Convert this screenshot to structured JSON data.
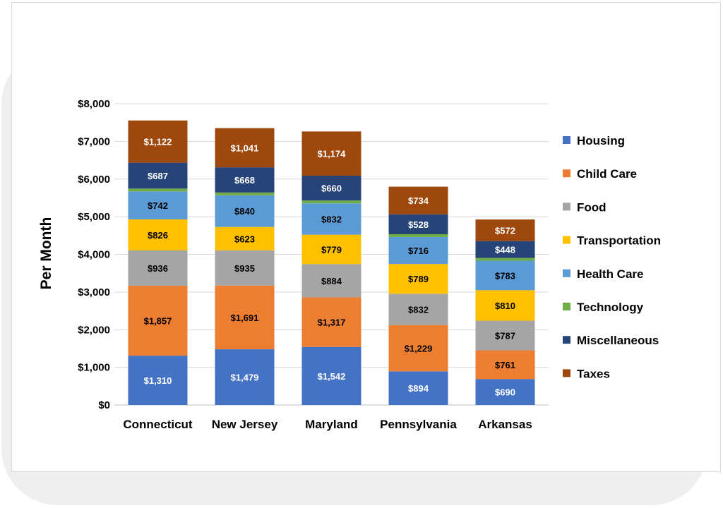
{
  "chart_data": {
    "type": "bar",
    "stacked": true,
    "title": "",
    "xlabel": "",
    "ylabel": "Per Month",
    "ylim": [
      0,
      8000
    ],
    "y_ticks": [
      "$0",
      "$1,000",
      "$2,000",
      "$3,000",
      "$4,000",
      "$5,000",
      "$6,000",
      "$7,000",
      "$8,000"
    ],
    "grid": true,
    "legend_position": "right",
    "categories": [
      "Connecticut",
      "New Jersey",
      "Maryland",
      "Pennsylvania",
      "Arkansas"
    ],
    "series": [
      {
        "name": "Housing",
        "color": "#4472c4",
        "label_color": "#ffffff",
        "values": [
          1310,
          1479,
          1542,
          894,
          690
        ],
        "labels": [
          "$1,310",
          "$1,479",
          "$1,542",
          "$894",
          "$690"
        ]
      },
      {
        "name": "Child Care",
        "color": "#ed7d31",
        "label_color": "#000000",
        "values": [
          1857,
          1691,
          1317,
          1229,
          761
        ],
        "labels": [
          "$1,857",
          "$1,691",
          "$1,317",
          "$1,229",
          "$761"
        ]
      },
      {
        "name": "Food",
        "color": "#a5a5a5",
        "label_color": "#000000",
        "values": [
          936,
          935,
          884,
          832,
          787
        ],
        "labels": [
          "$936",
          "$935",
          "$884",
          "$832",
          "$787"
        ]
      },
      {
        "name": "Transportation",
        "color": "#ffc000",
        "label_color": "#000000",
        "values": [
          826,
          623,
          779,
          789,
          810
        ],
        "labels": [
          "$826",
          "$623",
          "$779",
          "$789",
          "$810"
        ]
      },
      {
        "name": "Health Care",
        "color": "#5b9bd5",
        "label_color": "#000000",
        "values": [
          742,
          840,
          832,
          716,
          783
        ],
        "labels": [
          "$742",
          "$840",
          "$832",
          "$716",
          "$783"
        ]
      },
      {
        "name": "Technology",
        "color": "#70ad47",
        "label_color": "#000000",
        "values": [
          75,
          75,
          75,
          75,
          75
        ],
        "labels": [
          "",
          "",
          "",
          "",
          ""
        ]
      },
      {
        "name": "Miscellaneous",
        "color": "#264478",
        "label_color": "#ffffff",
        "values": [
          687,
          668,
          660,
          528,
          448
        ],
        "labels": [
          "$687",
          "$668",
          "$660",
          "$528",
          "$448"
        ]
      },
      {
        "name": "Taxes",
        "color": "#9e480e",
        "label_color": "#ffffff",
        "values": [
          1122,
          1041,
          1174,
          734,
          572
        ],
        "labels": [
          "$1,122",
          "$1,041",
          "$1,174",
          "$734",
          "$572"
        ]
      }
    ]
  }
}
